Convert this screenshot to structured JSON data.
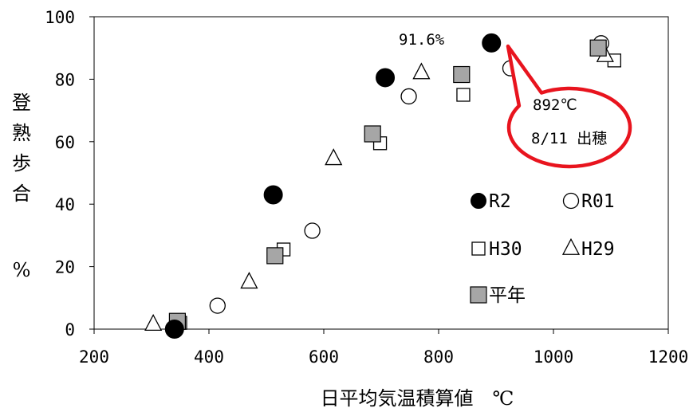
{
  "chart_data": {
    "type": "scatter",
    "xlabel": "日平均気温積算値　℃",
    "ylabel_chars": [
      "登",
      "熟",
      "歩",
      "合",
      "",
      "%"
    ],
    "xlim": [
      200,
      1200
    ],
    "ylim": [
      0,
      100
    ],
    "x_ticks": [
      200,
      400,
      600,
      800,
      1000,
      1200
    ],
    "y_ticks": [
      0,
      20,
      40,
      60,
      80,
      100
    ],
    "x_tick_labels": [
      "200",
      "400",
      "600",
      "800",
      "1000",
      "1200"
    ],
    "y_tick_labels": [
      "0",
      "20",
      "40",
      "60",
      "80",
      "100"
    ],
    "grid": false,
    "legend_position": "right-middle",
    "series": [
      {
        "name": "R2",
        "marker": "filled-circle",
        "color": "#000000",
        "points": [
          [
            340,
            0
          ],
          [
            512,
            43
          ],
          [
            707,
            80.5
          ],
          [
            892,
            91.6
          ]
        ]
      },
      {
        "name": "R01",
        "marker": "open-circle",
        "color": "#000000",
        "points": [
          [
            415,
            7.5
          ],
          [
            580,
            31.5
          ],
          [
            748,
            74.5
          ],
          [
            925,
            83.5
          ],
          [
            1083,
            91.5
          ]
        ]
      },
      {
        "name": "H30",
        "marker": "open-square",
        "color": "#000000",
        "points": [
          [
            350,
            2
          ],
          [
            530,
            25.5
          ],
          [
            698,
            59.5
          ],
          [
            843,
            75
          ],
          [
            1106,
            86
          ]
        ]
      },
      {
        "name": "H29",
        "marker": "open-triangle",
        "color": "#000000",
        "points": [
          [
            303,
            1.5
          ],
          [
            470,
            15
          ],
          [
            617,
            54.5
          ],
          [
            770,
            82
          ],
          [
            1090,
            87.5
          ]
        ]
      },
      {
        "name": "平年",
        "marker": "gray-square",
        "color": "#a6a6a6",
        "points": [
          [
            345,
            2.5
          ],
          [
            515,
            23.5
          ],
          [
            685,
            62.5
          ],
          [
            840,
            81.5
          ],
          [
            1078,
            90
          ]
        ]
      }
    ],
    "annotations": {
      "peak_label": "91.6%",
      "callout_line1": "892℃",
      "callout_line2": "8/11 出穂",
      "callout_color": "#e8141e"
    }
  }
}
